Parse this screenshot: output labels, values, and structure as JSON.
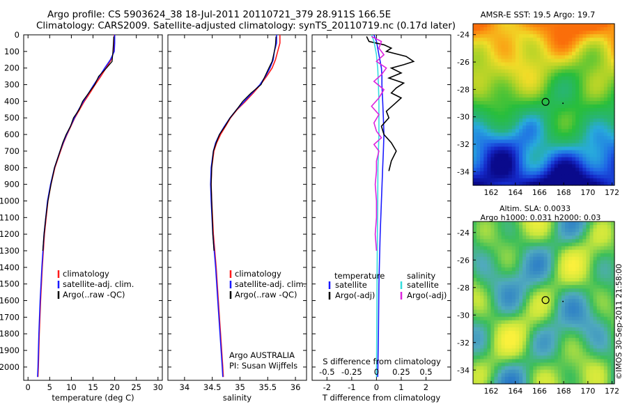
{
  "header": {
    "line1": "Argo profile: CS 5903624_38 18-Jul-2011 20110721_379 28.911S 166.5E",
    "line2": "Climatology: CARS2009. Satellite-adjusted climatology: synTS_20110719.nc (0.17d later)"
  },
  "sidebar_stamp": "©IMOS 30-Sep-2011 21:58:00",
  "colors": {
    "climatology": "#ff1a1a",
    "satellite": "#1a1aff",
    "argo": "#000000",
    "salinity_satellite": "#33dddd",
    "salinity_argo": "#dd22dd"
  },
  "chart_data": [
    {
      "type": "line",
      "panel": "temperature",
      "xlabel": "temperature (deg C)",
      "ylabel": "",
      "xlim": [
        -1,
        31
      ],
      "ylim": [
        2080,
        0
      ],
      "xticks": [
        "0",
        "5",
        "10",
        "15",
        "20",
        "25",
        "30"
      ],
      "xtick_values": [
        0,
        5,
        10,
        15,
        20,
        25,
        30
      ],
      "yticks": [
        "0",
        "100",
        "200",
        "300",
        "400",
        "500",
        "600",
        "700",
        "800",
        "900",
        "1000",
        "1100",
        "1200",
        "1300",
        "1400",
        "1500",
        "1600",
        "1700",
        "1800",
        "1900",
        "2000"
      ],
      "ytick_values": [
        0,
        100,
        200,
        300,
        400,
        500,
        600,
        700,
        800,
        900,
        1000,
        1100,
        1200,
        1300,
        1400,
        1500,
        1600,
        1700,
        1800,
        1900,
        2000
      ],
      "legend": [
        "climatology",
        "satellite-adj. clim.",
        "Argo(..raw -QC)"
      ],
      "series": [
        {
          "name": "climatology",
          "depth": [
            0,
            50,
            100,
            150,
            200,
            250,
            300,
            350,
            400,
            450,
            500,
            550,
            600,
            650,
            700,
            800,
            900,
            1000,
            1200,
            1400,
            1600,
            1800,
            2000,
            2060
          ],
          "values": [
            19.9,
            19.9,
            19.8,
            19.2,
            18.0,
            16.8,
            15.5,
            14.3,
            13.0,
            11.9,
            10.8,
            9.9,
            9.0,
            8.2,
            7.5,
            6.2,
            5.3,
            4.6,
            3.8,
            3.3,
            2.9,
            2.6,
            2.4,
            2.3
          ]
        },
        {
          "name": "satellite-adj. clim.",
          "depth": [
            0,
            50,
            100,
            150,
            200,
            250,
            300,
            350,
            400,
            450,
            500,
            550,
            600,
            650,
            700,
            800,
            900,
            1000,
            1200,
            1400,
            1600,
            1800,
            2000,
            2060
          ],
          "values": [
            20.0,
            20.0,
            19.9,
            19.0,
            17.7,
            16.5,
            15.2,
            14.0,
            12.8,
            11.7,
            10.7,
            9.8,
            8.9,
            8.1,
            7.4,
            6.1,
            5.2,
            4.5,
            3.7,
            3.2,
            2.8,
            2.5,
            2.3,
            2.2
          ]
        },
        {
          "name": "Argo(..raw -QC)",
          "depth": [
            10,
            60,
            100,
            160,
            200,
            250,
            300,
            350,
            400,
            450,
            500,
            550,
            600,
            650,
            700,
            800,
            900,
            1000,
            1100,
            1200,
            1300
          ],
          "values": [
            19.8,
            19.7,
            19.6,
            19.4,
            18.1,
            16.3,
            15.4,
            14.0,
            12.6,
            11.8,
            10.5,
            9.8,
            8.8,
            8.0,
            7.4,
            6.1,
            5.3,
            4.6,
            4.1,
            3.7,
            3.4
          ]
        }
      ]
    },
    {
      "type": "line",
      "panel": "salinity",
      "xlabel": "salinity",
      "ylabel": "",
      "xlim": [
        33.7,
        36.2
      ],
      "ylim": [
        2080,
        0
      ],
      "xticks": [
        "34",
        "34.5",
        "35",
        "35.5",
        "36"
      ],
      "xtick_values": [
        34,
        34.5,
        35,
        35.5,
        36
      ],
      "legend": [
        "climatology",
        "satellite-adj. clim.",
        "Argo(..raw -QC)"
      ],
      "annotation": [
        "Argo AUSTRALIA",
        "PI: Susan Wijffels"
      ],
      "series": [
        {
          "name": "climatology",
          "depth": [
            0,
            50,
            100,
            150,
            200,
            250,
            300,
            350,
            400,
            450,
            500,
            550,
            600,
            650,
            700,
            800,
            900,
            1000,
            1200,
            1400,
            1600,
            1800,
            2000,
            2060
          ],
          "values": [
            35.72,
            35.72,
            35.68,
            35.64,
            35.58,
            35.48,
            35.37,
            35.24,
            35.1,
            34.95,
            34.83,
            34.74,
            34.65,
            34.58,
            34.53,
            34.49,
            34.48,
            34.49,
            34.52,
            34.57,
            34.61,
            34.65,
            34.69,
            34.7
          ]
        },
        {
          "name": "satellite-adj. clim.",
          "depth": [
            0,
            50,
            100,
            150,
            200,
            250,
            300,
            350,
            400,
            450,
            500,
            550,
            600,
            650,
            700,
            800,
            900,
            1000,
            1200,
            1400,
            1600,
            1800,
            2000,
            2060
          ],
          "values": [
            35.66,
            35.66,
            35.62,
            35.6,
            35.54,
            35.46,
            35.36,
            35.22,
            35.08,
            34.94,
            34.82,
            34.72,
            34.63,
            34.56,
            34.52,
            34.48,
            34.47,
            34.48,
            34.51,
            34.56,
            34.6,
            34.64,
            34.68,
            34.69
          ]
        },
        {
          "name": "Argo(..raw -QC)",
          "depth": [
            10,
            60,
            100,
            160,
            200,
            250,
            300,
            350,
            400,
            450,
            500,
            550,
            600,
            650,
            700,
            800,
            900,
            1000,
            1100,
            1200,
            1300
          ],
          "values": [
            35.65,
            35.64,
            35.62,
            35.58,
            35.52,
            35.45,
            35.38,
            35.2,
            35.05,
            34.94,
            34.82,
            34.73,
            34.63,
            34.57,
            34.52,
            34.49,
            34.48,
            34.49,
            34.5,
            34.51,
            34.53
          ]
        }
      ]
    },
    {
      "type": "line",
      "panel": "difference",
      "xlabel": "T difference from climatology",
      "xlabel_top": "S difference from climatology",
      "xlim": [
        -2.6,
        3.0
      ],
      "ylim": [
        2080,
        0
      ],
      "xticks": [
        "-2",
        "-1",
        "0",
        "1",
        "2"
      ],
      "xtick_values": [
        -2,
        -1,
        0,
        1,
        2
      ],
      "xticks_top": [
        "-0.5",
        "-0.25",
        "0",
        "0.25",
        "0.5"
      ],
      "xtick_top_values": [
        -2,
        -1,
        0,
        1,
        2
      ],
      "legend_headers": [
        "temperature",
        "salinity"
      ],
      "legend": [
        "satellite",
        "Argo(-adj)",
        "satellite",
        "Argo(-adj)"
      ],
      "series": [
        {
          "name": "satellite",
          "depth": [
            0,
            40,
            80,
            120,
            160,
            200,
            250,
            300,
            400,
            500,
            600,
            700,
            800,
            1000,
            1200,
            1500,
            1800,
            2060
          ],
          "values": [
            -0.1,
            0.0,
            0.05,
            0.1,
            0.15,
            0.2,
            0.22,
            0.22,
            0.25,
            0.28,
            0.3,
            0.28,
            0.25,
            0.2,
            0.15,
            0.1,
            0.08,
            0.05
          ]
        },
        {
          "name": "Argo(-adj)",
          "depth": [
            10,
            40,
            60,
            80,
            100,
            130,
            160,
            180,
            200,
            230,
            260,
            290,
            320,
            350,
            380,
            420,
            460,
            500,
            550,
            600,
            650,
            700,
            760,
            820
          ],
          "values": [
            -0.4,
            -0.3,
            0.3,
            0.6,
            0.4,
            1.2,
            1.5,
            1.1,
            0.6,
            1.0,
            0.5,
            1.1,
            0.8,
            0.6,
            1.0,
            0.7,
            0.4,
            0.5,
            0.2,
            0.3,
            0.6,
            0.8,
            0.6,
            0.5
          ]
        },
        {
          "name": "satellite",
          "depth": [
            0,
            40,
            80,
            120,
            160,
            200,
            300,
            400,
            500,
            600,
            700,
            800,
            1000,
            1300,
            1600,
            2060
          ],
          "values": [
            -0.2,
            -0.1,
            -0.05,
            0.0,
            0.02,
            0.05,
            0.08,
            0.1,
            0.1,
            0.1,
            0.08,
            0.06,
            0.05,
            0.03,
            0.02,
            0.0
          ]
        },
        {
          "name": "Argo(-adj)",
          "depth": [
            10,
            40,
            80,
            120,
            160,
            200,
            240,
            280,
            330,
            380,
            430,
            480,
            530,
            580,
            620,
            660,
            700,
            760,
            820,
            900,
            1000,
            1100,
            1200,
            1300
          ],
          "values": [
            -0.2,
            0.2,
            0.1,
            0.3,
            0.0,
            0.4,
            0.2,
            -0.1,
            0.3,
            0.1,
            -0.2,
            0.1,
            -0.1,
            0.0,
            0.2,
            -0.1,
            0.1,
            0.0,
            0.0,
            -0.05,
            0.0,
            0.0,
            -0.05,
            0.0
          ]
        }
      ]
    },
    {
      "type": "heatmap",
      "panel": "sst",
      "title": "AMSR-E SST: 19.5  Argo: 19.7",
      "xlim": [
        160.5,
        172.2
      ],
      "ylim": [
        -35,
        -23.2
      ],
      "xticks": [
        "162",
        "164",
        "166",
        "168",
        "170",
        "172"
      ],
      "xtick_values": [
        162,
        164,
        166,
        168,
        170,
        172
      ],
      "yticks": [
        "-24",
        "-26",
        "-28",
        "-30",
        "-32",
        "-34"
      ],
      "ytick_values": [
        -24,
        -26,
        -28,
        -30,
        -32,
        -34
      ],
      "marker": {
        "lon": 166.5,
        "lat": -28.911
      }
    },
    {
      "type": "heatmap",
      "panel": "sla",
      "title_lines": [
        "Altim. SLA: 0.0033",
        "Argo h1000: 0.031  h2000: 0.03"
      ],
      "xlim": [
        160.5,
        172.2
      ],
      "ylim": [
        -35,
        -23.2
      ],
      "xticks": [
        "162",
        "164",
        "166",
        "168",
        "170",
        "172"
      ],
      "xtick_values": [
        162,
        164,
        166,
        168,
        170,
        172
      ],
      "yticks": [
        "-24",
        "-26",
        "-28",
        "-30",
        "-32",
        "-34"
      ],
      "ytick_values": [
        -24,
        -26,
        -28,
        -30,
        -32,
        -34
      ],
      "marker": {
        "lon": 166.5,
        "lat": -28.911
      }
    }
  ]
}
